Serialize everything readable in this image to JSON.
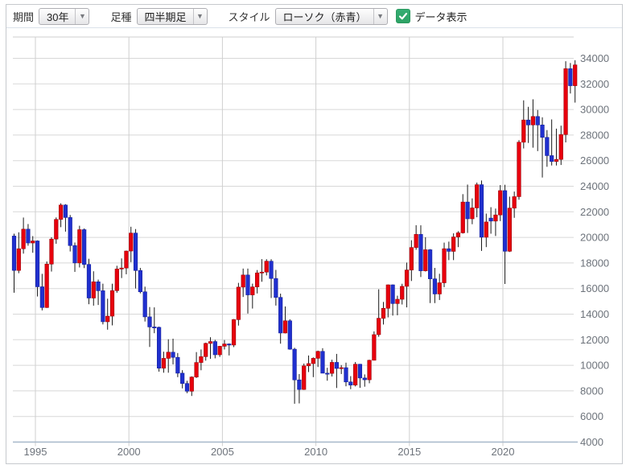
{
  "toolbar": {
    "period_label": "期間",
    "period_value": "30年",
    "bartype_label": "足種",
    "bartype_value": "四半期足",
    "style_label": "スタイル",
    "style_value": "ローソク（赤青）",
    "data_display_label": "データ表示",
    "data_display_checked": true,
    "checkbox_color": "#35ad72"
  },
  "chart_data": {
    "type": "candlestick",
    "interval": "quarterly",
    "x_ticks": [
      1995,
      2000,
      2005,
      2010,
      2015,
      2020
    ],
    "y_ticks": [
      4000,
      6000,
      8000,
      10000,
      12000,
      14000,
      16000,
      18000,
      20000,
      22000,
      24000,
      26000,
      28000,
      30000,
      32000,
      34000
    ],
    "ylim": [
      4000,
      35600
    ],
    "grid": true,
    "y_axis_side": "right",
    "up_color": "#e8000d",
    "down_color": "#2030cf",
    "wick_color": "#1a1a1a",
    "columns": [
      "period",
      "open",
      "high",
      "low",
      "close"
    ],
    "candles": [
      [
        "1993Q4",
        20106,
        20286,
        15672,
        17417
      ],
      [
        "1994Q1",
        17417,
        20400,
        17200,
        19112
      ],
      [
        "1994Q2",
        19112,
        21552,
        18730,
        20644
      ],
      [
        "1994Q3",
        20644,
        21045,
        19350,
        19564
      ],
      [
        "1994Q4",
        19564,
        20100,
        18800,
        19723
      ],
      [
        "1995Q1",
        19723,
        19770,
        15381,
        16140
      ],
      [
        "1995Q2",
        16140,
        17150,
        14295,
        14517
      ],
      [
        "1995Q3",
        14517,
        18120,
        14485,
        17913
      ],
      [
        "1995Q4",
        17913,
        20012,
        17330,
        19868
      ],
      [
        "1996Q1",
        19868,
        21560,
        19500,
        21407
      ],
      [
        "1996Q2",
        21407,
        22666,
        20800,
        22531
      ],
      [
        "1996Q3",
        22531,
        22600,
        20450,
        21556
      ],
      [
        "1996Q4",
        21556,
        21750,
        18900,
        19361
      ],
      [
        "1997Q1",
        19361,
        19600,
        17304,
        18003
      ],
      [
        "1997Q2",
        18003,
        20910,
        17650,
        20605
      ],
      [
        "1997Q3",
        20605,
        20700,
        17600,
        17888
      ],
      [
        "1997Q4",
        17888,
        18330,
        14775,
        15259
      ],
      [
        "1998Q1",
        15259,
        17352,
        14664,
        16527
      ],
      [
        "1998Q2",
        16527,
        16700,
        14715,
        15830
      ],
      [
        "1998Q3",
        15830,
        16380,
        13197,
        13406
      ],
      [
        "1998Q4",
        13406,
        15207,
        12787,
        13842
      ],
      [
        "1999Q1",
        13842,
        16378,
        13122,
        15837
      ],
      [
        "1999Q2",
        15837,
        17782,
        15672,
        17530
      ],
      [
        "1999Q3",
        17530,
        18357,
        16821,
        17605
      ],
      [
        "1999Q4",
        17605,
        18970,
        17117,
        18934
      ],
      [
        "2000Q1",
        18934,
        20833,
        18068,
        20337
      ],
      [
        "2000Q2",
        20337,
        20653,
        16008,
        17411
      ],
      [
        "2000Q3",
        17411,
        17614,
        15626,
        15747
      ],
      [
        "2000Q4",
        15747,
        16149,
        13423,
        13786
      ],
      [
        "2001Q1",
        13786,
        14556,
        11434,
        12999
      ],
      [
        "2001Q2",
        12999,
        14529,
        12511,
        12969
      ],
      [
        "2001Q3",
        12969,
        13025,
        9504,
        9775
      ],
      [
        "2001Q4",
        9775,
        11064,
        9420,
        10543
      ],
      [
        "2002Q1",
        10543,
        12034,
        9420,
        11025
      ],
      [
        "2002Q2",
        11025,
        12081,
        10074,
        10622
      ],
      [
        "2002Q3",
        10622,
        10960,
        9075,
        9383
      ],
      [
        "2002Q4",
        9383,
        9619,
        8197,
        8579
      ],
      [
        "2003Q1",
        8579,
        8790,
        7824,
        7973
      ],
      [
        "2003Q2",
        7973,
        9137,
        7603,
        9083
      ],
      [
        "2003Q3",
        9083,
        11033,
        9010,
        10219
      ],
      [
        "2003Q4",
        10219,
        11238,
        9614,
        10677
      ],
      [
        "2004Q1",
        10677,
        11770,
        10365,
        11715
      ],
      [
        "2004Q2",
        11715,
        12195,
        10505,
        11858
      ],
      [
        "2004Q3",
        11858,
        11988,
        10545,
        10824
      ],
      [
        "2004Q4",
        10824,
        11517,
        10659,
        11489
      ],
      [
        "2005Q1",
        11489,
        11975,
        11238,
        11669
      ],
      [
        "2005Q2",
        11669,
        11708,
        10770,
        11584
      ],
      [
        "2005Q3",
        11584,
        13617,
        11424,
        13574
      ],
      [
        "2005Q4",
        13574,
        16445,
        13106,
        16111
      ],
      [
        "2006Q1",
        16111,
        17563,
        15342,
        17060
      ],
      [
        "2006Q2",
        17060,
        17564,
        14045,
        15505
      ],
      [
        "2006Q3",
        15505,
        16385,
        14437,
        16128
      ],
      [
        "2006Q4",
        16128,
        17448,
        15617,
        17226
      ],
      [
        "2007Q1",
        17226,
        18300,
        16532,
        17288
      ],
      [
        "2007Q2",
        17288,
        18297,
        17028,
        18138
      ],
      [
        "2007Q3",
        18138,
        18295,
        15262,
        16786
      ],
      [
        "2007Q4",
        16786,
        17458,
        14670,
        15308
      ],
      [
        "2008Q1",
        15308,
        15603,
        11691,
        12526
      ],
      [
        "2008Q2",
        12526,
        14601,
        12492,
        13481
      ],
      [
        "2008Q3",
        13481,
        13603,
        11218,
        11260
      ],
      [
        "2008Q4",
        11260,
        11368,
        6995,
        8860
      ],
      [
        "2009Q1",
        8860,
        9315,
        7021,
        8110
      ],
      [
        "2009Q2",
        8110,
        10136,
        8077,
        9958
      ],
      [
        "2009Q3",
        9958,
        10767,
        9472,
        10133
      ],
      [
        "2009Q4",
        10133,
        10620,
        9076,
        10546
      ],
      [
        "2010Q1",
        10546,
        11147,
        9867,
        11090
      ],
      [
        "2010Q2",
        11090,
        11339,
        9378,
        9383
      ],
      [
        "2010Q3",
        9383,
        9807,
        8796,
        9369
      ],
      [
        "2010Q4",
        9369,
        10438,
        9123,
        10229
      ],
      [
        "2011Q1",
        10229,
        10892,
        8227,
        9755
      ],
      [
        "2011Q2",
        9755,
        10017,
        9318,
        9816
      ],
      [
        "2011Q3",
        9816,
        10208,
        8360,
        8700
      ],
      [
        "2011Q4",
        8700,
        9152,
        8135,
        8455
      ],
      [
        "2012Q1",
        8455,
        10255,
        8349,
        10084
      ],
      [
        "2012Q2",
        10084,
        10110,
        8239,
        9007
      ],
      [
        "2012Q3",
        9007,
        9288,
        8328,
        8870
      ],
      [
        "2012Q4",
        8870,
        10433,
        8596,
        10395
      ],
      [
        "2013Q1",
        10395,
        12650,
        10380,
        12398
      ],
      [
        "2013Q2",
        12398,
        15943,
        12230,
        13677
      ],
      [
        "2013Q3",
        13677,
        14953,
        13188,
        14456
      ],
      [
        "2013Q4",
        14456,
        16320,
        13748,
        16291
      ],
      [
        "2014Q1",
        16291,
        16321,
        13885,
        14828
      ],
      [
        "2014Q2",
        14828,
        15442,
        13910,
        15162
      ],
      [
        "2014Q3",
        15162,
        16374,
        14753,
        16174
      ],
      [
        "2014Q4",
        16174,
        18030,
        14529,
        17451
      ],
      [
        "2015Q1",
        17451,
        19778,
        16592,
        19207
      ],
      [
        "2015Q2",
        19207,
        20952,
        19034,
        20236
      ],
      [
        "2015Q3",
        20236,
        20946,
        16901,
        17388
      ],
      [
        "2015Q4",
        17388,
        20012,
        17333,
        19034
      ],
      [
        "2016Q1",
        19034,
        19085,
        14866,
        16759
      ],
      [
        "2016Q2",
        16759,
        17613,
        14864,
        15576
      ],
      [
        "2016Q3",
        15576,
        17156,
        15106,
        16450
      ],
      [
        "2016Q4",
        16450,
        19592,
        16111,
        19114
      ],
      [
        "2017Q1",
        19114,
        19668,
        18224,
        18909
      ],
      [
        "2017Q2",
        18909,
        20318,
        18225,
        20033
      ],
      [
        "2017Q3",
        20033,
        20481,
        19240,
        20356
      ],
      [
        "2017Q4",
        20356,
        23382,
        20300,
        22765
      ],
      [
        "2018Q1",
        22765,
        24129,
        20347,
        21454
      ],
      [
        "2018Q2",
        21454,
        23050,
        21031,
        22305
      ],
      [
        "2018Q3",
        22305,
        24286,
        21574,
        24120
      ],
      [
        "2018Q4",
        24120,
        24448,
        18948,
        20015
      ],
      [
        "2019Q1",
        20015,
        21860,
        19241,
        21206
      ],
      [
        "2019Q2",
        21509,
        22362,
        20289,
        21276
      ],
      [
        "2019Q3",
        21276,
        22255,
        20110,
        21756
      ],
      [
        "2019Q4",
        21756,
        24091,
        21276,
        23657
      ],
      [
        "2020Q1",
        23657,
        24115,
        16358,
        18917
      ],
      [
        "2020Q2",
        18917,
        23185,
        18858,
        22288
      ],
      [
        "2020Q3",
        22288,
        23582,
        21530,
        23185
      ],
      [
        "2020Q4",
        23185,
        27602,
        22948,
        27444
      ],
      [
        "2021Q1",
        27444,
        30715,
        26954,
        29179
      ],
      [
        "2021Q2",
        29179,
        30208,
        27385,
        28792
      ],
      [
        "2021Q3",
        28792,
        30796,
        27013,
        29453
      ],
      [
        "2021Q4",
        29453,
        29961,
        26749,
        28792
      ],
      [
        "2022Q1",
        28792,
        29389,
        24681,
        27821
      ],
      [
        "2022Q2",
        27821,
        28389,
        25520,
        26393
      ],
      [
        "2022Q3",
        26393,
        29223,
        25622,
        25937
      ],
      [
        "2022Q4",
        25937,
        28502,
        25621,
        26095
      ],
      [
        "2023Q1",
        26095,
        28734,
        25662,
        28041
      ],
      [
        "2023Q2",
        28041,
        33772,
        27427,
        33189
      ],
      [
        "2023Q3",
        33189,
        33634,
        31250,
        31858
      ],
      [
        "2023Q4",
        31858,
        33853,
        30539,
        33486
      ]
    ]
  }
}
